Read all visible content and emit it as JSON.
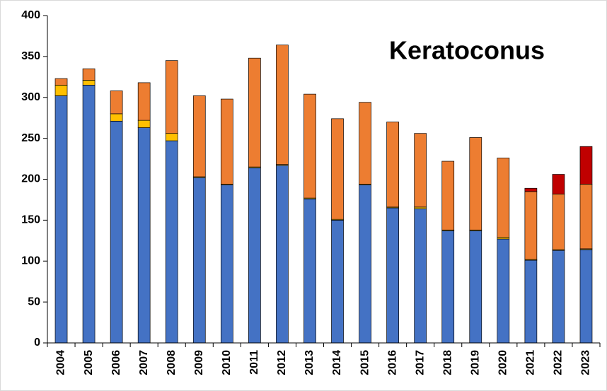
{
  "chart_data": {
    "type": "stacked-bar",
    "title": "Keratoconus",
    "categories": [
      "2004",
      "2005",
      "2006",
      "2007",
      "2008",
      "2009",
      "2010",
      "2011",
      "2012",
      "2013",
      "2014",
      "2015",
      "2016",
      "2017",
      "2018",
      "2019",
      "2020",
      "2021",
      "2022",
      "2023"
    ],
    "series": [
      {
        "color": "#4472c4",
        "values": [
          302,
          315,
          271,
          263,
          247,
          202,
          193,
          214,
          217,
          176,
          150,
          193,
          165,
          164,
          137,
          137,
          127,
          101,
          113,
          114
        ]
      },
      {
        "color": "#ffc000",
        "values": [
          13,
          6,
          9,
          9,
          9,
          1,
          1,
          1,
          1,
          1,
          1,
          1,
          1,
          2,
          1,
          1,
          2,
          1,
          1,
          1
        ]
      },
      {
        "color": "#ed7d31",
        "values": [
          8,
          14,
          28,
          46,
          89,
          99,
          104,
          133,
          146,
          127,
          123,
          100,
          104,
          90,
          84,
          113,
          97,
          83,
          68,
          79
        ]
      },
      {
        "color": "#c00000",
        "values": [
          0,
          0,
          0,
          0,
          0,
          0,
          0,
          0,
          0,
          0,
          0,
          0,
          0,
          0,
          0,
          0,
          0,
          4,
          24,
          46
        ]
      }
    ],
    "ylim": [
      0,
      400
    ],
    "yticks": [
      0,
      50,
      100,
      150,
      200,
      250,
      300,
      350,
      400
    ],
    "grid": false
  }
}
